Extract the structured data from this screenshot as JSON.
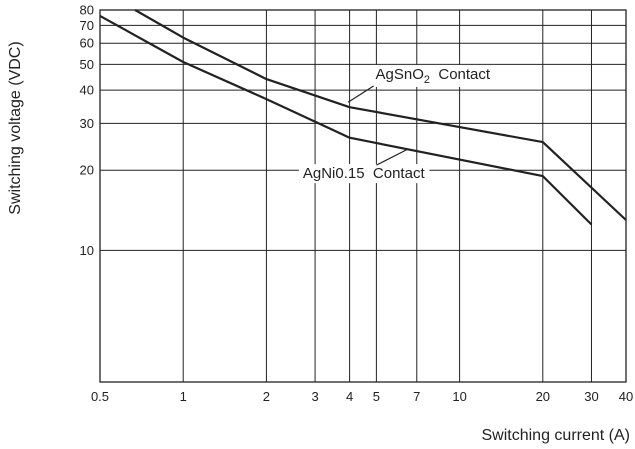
{
  "chart_data": {
    "type": "line",
    "xlabel": "Switching current (A)",
    "ylabel": "Switching voltage (VDC)",
    "x_scale": "log",
    "y_scale": "log",
    "xlim": [
      0.5,
      40
    ],
    "ylim": [
      3.2,
      80
    ],
    "grid": true,
    "x_ticks": [
      0.5,
      1,
      2,
      3,
      4,
      5,
      7,
      10,
      20,
      30,
      40
    ],
    "x_tick_labels": [
      "0.5",
      "1",
      "2",
      "3",
      "4",
      "5",
      "7",
      "10",
      "20",
      "30",
      "40"
    ],
    "y_ticks": [
      10,
      20,
      30,
      40,
      50,
      60,
      70,
      80
    ],
    "y_tick_labels": [
      "10",
      "20",
      "30",
      "40",
      "50",
      "60",
      "70",
      "80"
    ],
    "series": [
      {
        "name": "AgSnO2 Contact",
        "name_parts": [
          "AgSnO",
          "2",
          " Contact"
        ],
        "x": [
          0.67,
          1,
          2,
          4,
          20,
          40
        ],
        "y": [
          80,
          63,
          44,
          34.5,
          25.5,
          13
        ]
      },
      {
        "name": "AgNi0.15 Contact",
        "name_parts": [
          "AgNi0.15",
          "",
          " Contact"
        ],
        "x": [
          0.5,
          1,
          2,
          4,
          20,
          30
        ],
        "y": [
          76,
          51,
          37,
          26.5,
          19,
          12.5
        ]
      }
    ],
    "annotations": [
      {
        "series": 0,
        "text": "AgSnO2 Contact",
        "at": [
          3.95,
          36
        ],
        "label_at": [
          8,
          46
        ]
      },
      {
        "series": 1,
        "text": "AgNi0.15 Contact",
        "at": [
          6.5,
          24
        ],
        "label_at": [
          4.5,
          19.5
        ]
      }
    ]
  }
}
